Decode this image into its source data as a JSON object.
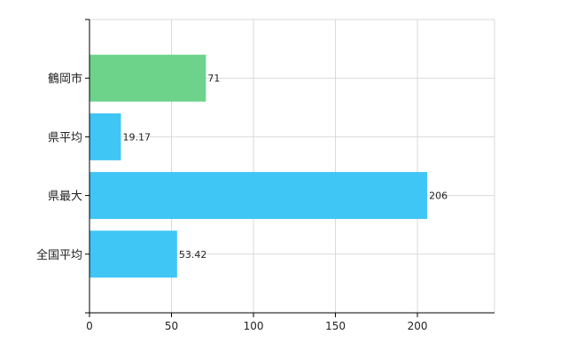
{
  "chart_data": {
    "type": "bar",
    "orientation": "horizontal",
    "title": "",
    "xlabel": "",
    "ylabel": "",
    "categories": [
      "鶴岡市",
      "県平均",
      "県最大",
      "全国平均"
    ],
    "values": [
      71,
      19.17,
      206,
      53.42
    ],
    "data_labels": [
      "71",
      "19.17",
      "206",
      "53.42"
    ],
    "bar_colors": [
      "#6dd38b",
      "#3fc6f4",
      "#3fc6f4",
      "#3fc6f4"
    ],
    "xlim": [
      0,
      247
    ],
    "x_ticks": [
      0,
      50,
      100,
      150,
      200
    ],
    "x_tick_labels": [
      "0",
      "50",
      "100",
      "150",
      "200"
    ],
    "grid": true,
    "legend": "none"
  }
}
